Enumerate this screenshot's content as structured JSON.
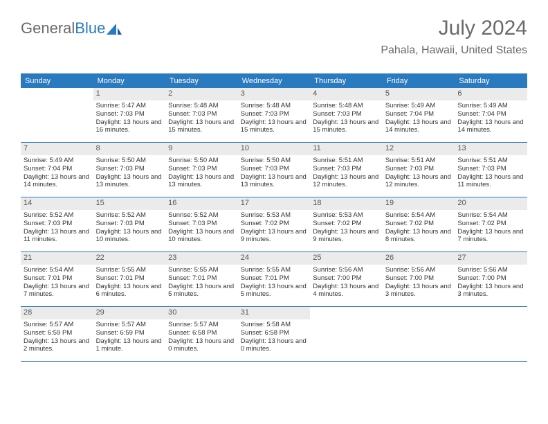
{
  "brand": {
    "part1": "General",
    "part2": "Blue"
  },
  "header": {
    "month_year": "July 2024",
    "location": "Pahala, Hawaii, United States"
  },
  "theme": {
    "accent": "#2a7ac0",
    "weekday_text": "#ffffff",
    "daynum_bg": "#ebebeb",
    "text": "#333333",
    "muted": "#6a6a6a",
    "bg": "#ffffff",
    "title_fontsize": 30,
    "location_fontsize": 16,
    "weekday_fontsize": 11,
    "body_fontsize": 9.5
  },
  "calendar": {
    "weekdays": [
      "Sunday",
      "Monday",
      "Tuesday",
      "Wednesday",
      "Thursday",
      "Friday",
      "Saturday"
    ],
    "first_weekday_index": 1,
    "days": [
      {
        "n": 1,
        "sunrise": "5:47 AM",
        "sunset": "7:03 PM",
        "daylight": "13 hours and 16 minutes."
      },
      {
        "n": 2,
        "sunrise": "5:48 AM",
        "sunset": "7:03 PM",
        "daylight": "13 hours and 15 minutes."
      },
      {
        "n": 3,
        "sunrise": "5:48 AM",
        "sunset": "7:03 PM",
        "daylight": "13 hours and 15 minutes."
      },
      {
        "n": 4,
        "sunrise": "5:48 AM",
        "sunset": "7:03 PM",
        "daylight": "13 hours and 15 minutes."
      },
      {
        "n": 5,
        "sunrise": "5:49 AM",
        "sunset": "7:04 PM",
        "daylight": "13 hours and 14 minutes."
      },
      {
        "n": 6,
        "sunrise": "5:49 AM",
        "sunset": "7:04 PM",
        "daylight": "13 hours and 14 minutes."
      },
      {
        "n": 7,
        "sunrise": "5:49 AM",
        "sunset": "7:04 PM",
        "daylight": "13 hours and 14 minutes."
      },
      {
        "n": 8,
        "sunrise": "5:50 AM",
        "sunset": "7:03 PM",
        "daylight": "13 hours and 13 minutes."
      },
      {
        "n": 9,
        "sunrise": "5:50 AM",
        "sunset": "7:03 PM",
        "daylight": "13 hours and 13 minutes."
      },
      {
        "n": 10,
        "sunrise": "5:50 AM",
        "sunset": "7:03 PM",
        "daylight": "13 hours and 13 minutes."
      },
      {
        "n": 11,
        "sunrise": "5:51 AM",
        "sunset": "7:03 PM",
        "daylight": "13 hours and 12 minutes."
      },
      {
        "n": 12,
        "sunrise": "5:51 AM",
        "sunset": "7:03 PM",
        "daylight": "13 hours and 12 minutes."
      },
      {
        "n": 13,
        "sunrise": "5:51 AM",
        "sunset": "7:03 PM",
        "daylight": "13 hours and 11 minutes."
      },
      {
        "n": 14,
        "sunrise": "5:52 AM",
        "sunset": "7:03 PM",
        "daylight": "13 hours and 11 minutes."
      },
      {
        "n": 15,
        "sunrise": "5:52 AM",
        "sunset": "7:03 PM",
        "daylight": "13 hours and 10 minutes."
      },
      {
        "n": 16,
        "sunrise": "5:52 AM",
        "sunset": "7:03 PM",
        "daylight": "13 hours and 10 minutes."
      },
      {
        "n": 17,
        "sunrise": "5:53 AM",
        "sunset": "7:02 PM",
        "daylight": "13 hours and 9 minutes."
      },
      {
        "n": 18,
        "sunrise": "5:53 AM",
        "sunset": "7:02 PM",
        "daylight": "13 hours and 9 minutes."
      },
      {
        "n": 19,
        "sunrise": "5:54 AM",
        "sunset": "7:02 PM",
        "daylight": "13 hours and 8 minutes."
      },
      {
        "n": 20,
        "sunrise": "5:54 AM",
        "sunset": "7:02 PM",
        "daylight": "13 hours and 7 minutes."
      },
      {
        "n": 21,
        "sunrise": "5:54 AM",
        "sunset": "7:01 PM",
        "daylight": "13 hours and 7 minutes."
      },
      {
        "n": 22,
        "sunrise": "5:55 AM",
        "sunset": "7:01 PM",
        "daylight": "13 hours and 6 minutes."
      },
      {
        "n": 23,
        "sunrise": "5:55 AM",
        "sunset": "7:01 PM",
        "daylight": "13 hours and 5 minutes."
      },
      {
        "n": 24,
        "sunrise": "5:55 AM",
        "sunset": "7:01 PM",
        "daylight": "13 hours and 5 minutes."
      },
      {
        "n": 25,
        "sunrise": "5:56 AM",
        "sunset": "7:00 PM",
        "daylight": "13 hours and 4 minutes."
      },
      {
        "n": 26,
        "sunrise": "5:56 AM",
        "sunset": "7:00 PM",
        "daylight": "13 hours and 3 minutes."
      },
      {
        "n": 27,
        "sunrise": "5:56 AM",
        "sunset": "7:00 PM",
        "daylight": "13 hours and 3 minutes."
      },
      {
        "n": 28,
        "sunrise": "5:57 AM",
        "sunset": "6:59 PM",
        "daylight": "13 hours and 2 minutes."
      },
      {
        "n": 29,
        "sunrise": "5:57 AM",
        "sunset": "6:59 PM",
        "daylight": "13 hours and 1 minute."
      },
      {
        "n": 30,
        "sunrise": "5:57 AM",
        "sunset": "6:58 PM",
        "daylight": "13 hours and 0 minutes."
      },
      {
        "n": 31,
        "sunrise": "5:58 AM",
        "sunset": "6:58 PM",
        "daylight": "13 hours and 0 minutes."
      }
    ],
    "labels": {
      "sunrise": "Sunrise:",
      "sunset": "Sunset:",
      "daylight": "Daylight:"
    }
  }
}
